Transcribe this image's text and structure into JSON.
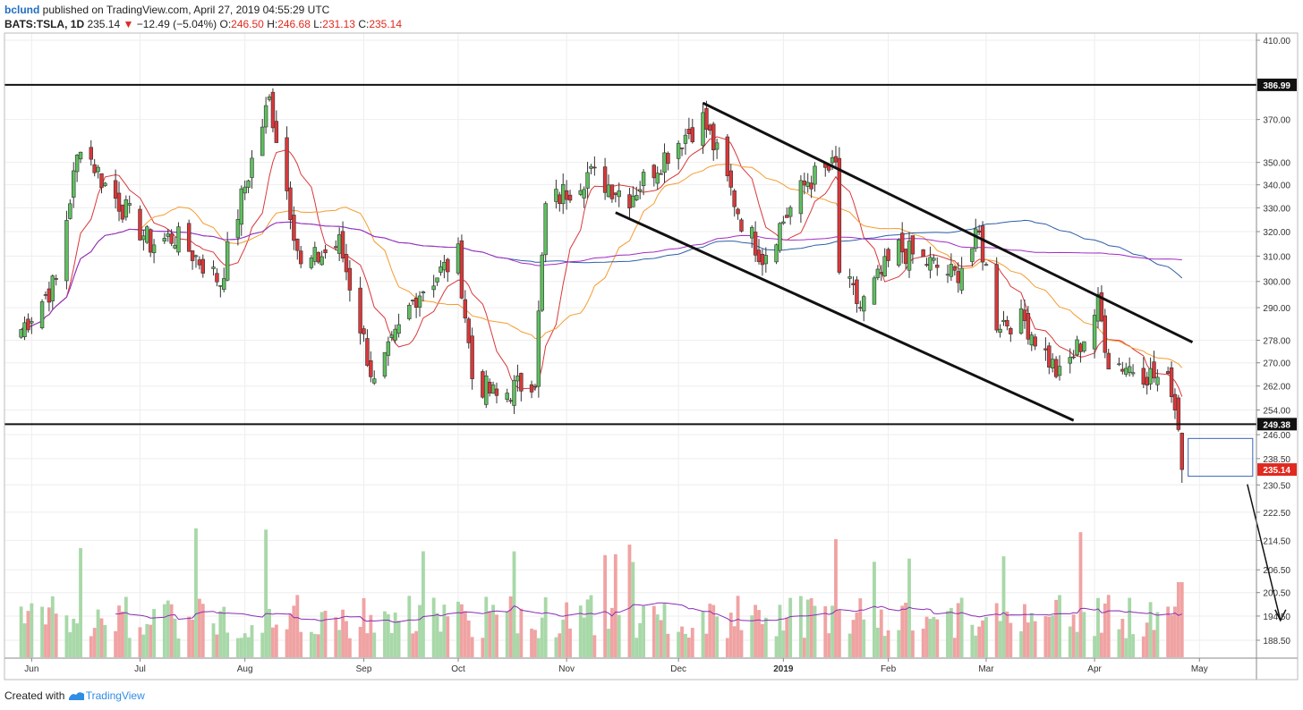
{
  "header": {
    "user": "bclund",
    "published": "published on TradingView.com, April 27, 2019 04:55:29 UTC",
    "symbol": "BATS:TSLA, 1D",
    "last": "235.14",
    "change": "−12.49 (−5.04%)",
    "o_label": "O:",
    "o": "246.50",
    "h_label": "H:",
    "h": "246.68",
    "l_label": "L:",
    "l": "231.13",
    "c_label": "C:",
    "c": "235.14"
  },
  "footer": {
    "created_with": "Created with",
    "brand": "TradingView"
  },
  "colors": {
    "up": "#5fbf5f",
    "down": "#d9383a",
    "vol_up": "#a8d8a8",
    "vol_down": "#f0a3a3",
    "ma_red": "#d9383a",
    "ma_orange": "#f49c2e",
    "ma_blue": "#2d5fa8",
    "ma_purple": "#a22cc4",
    "vol_ma": "#8a2db5",
    "price_label_bg": "#e0291f"
  },
  "chart_data": {
    "type": "candlestick",
    "symbol": "BATS:TSLA",
    "interval": "1D",
    "x_ticks": [
      "Jun",
      "Jul",
      "Aug",
      "Sep",
      "Oct",
      "Nov",
      "Dec",
      "2019",
      "Feb",
      "Mar",
      "Apr",
      "May"
    ],
    "y_ticks": [
      "410.00",
      "370.00",
      "350.00",
      "340.00",
      "330.00",
      "320.00",
      "310.00",
      "300.00",
      "290.00",
      "278.00",
      "270.00",
      "262.00",
      "254.00",
      "246.00",
      "238.50",
      "230.50",
      "222.50",
      "214.50",
      "206.50",
      "200.50",
      "194.50",
      "188.50"
    ],
    "y_tick_values": [
      410,
      370,
      350,
      340,
      330,
      320,
      310,
      300,
      290,
      278,
      270,
      262,
      254,
      246,
      238.5,
      230.5,
      222.5,
      214.5,
      206.5,
      200.5,
      194.5,
      188.5
    ],
    "y_scale": "log",
    "ylim": [
      182,
      420
    ],
    "horizontal_levels": [
      {
        "value": 386.99,
        "label": "386.99"
      },
      {
        "value": 249.38,
        "label": "249.38"
      }
    ],
    "last_price": {
      "value": 235.14,
      "label": "235.14"
    },
    "anchor_points": [
      {
        "date": "2018-05-29",
        "close": 282
      },
      {
        "date": "2018-06-08",
        "close": 300
      },
      {
        "date": "2018-06-15",
        "close": 360
      },
      {
        "date": "2018-06-22",
        "close": 340
      },
      {
        "date": "2018-07-05",
        "close": 315
      },
      {
        "date": "2018-07-12",
        "close": 318
      },
      {
        "date": "2018-07-25",
        "close": 300
      },
      {
        "date": "2018-08-02",
        "close": 345
      },
      {
        "date": "2018-08-08",
        "close": 379
      },
      {
        "date": "2018-08-17",
        "close": 305
      },
      {
        "date": "2018-08-28",
        "close": 315
      },
      {
        "date": "2018-09-07",
        "close": 262
      },
      {
        "date": "2018-09-19",
        "close": 295
      },
      {
        "date": "2018-10-01",
        "close": 310
      },
      {
        "date": "2018-10-05",
        "close": 265
      },
      {
        "date": "2018-10-12",
        "close": 258
      },
      {
        "date": "2018-10-23",
        "close": 265
      },
      {
        "date": "2018-10-26",
        "close": 330
      },
      {
        "date": "2018-11-07",
        "close": 345
      },
      {
        "date": "2018-11-19",
        "close": 335
      },
      {
        "date": "2018-12-03",
        "close": 360
      },
      {
        "date": "2018-12-10",
        "close": 370
      },
      {
        "date": "2018-12-21",
        "close": 325
      },
      {
        "date": "2018-12-27",
        "close": 310
      },
      {
        "date": "2019-01-09",
        "close": 342
      },
      {
        "date": "2019-01-17",
        "close": 348
      },
      {
        "date": "2019-01-18",
        "close": 304
      },
      {
        "date": "2019-01-24",
        "close": 290
      },
      {
        "date": "2019-02-04",
        "close": 313
      },
      {
        "date": "2019-02-20",
        "close": 302
      },
      {
        "date": "2019-02-27",
        "close": 318
      },
      {
        "date": "2019-03-04",
        "close": 285
      },
      {
        "date": "2019-03-12",
        "close": 285
      },
      {
        "date": "2019-03-22",
        "close": 265
      },
      {
        "date": "2019-03-29",
        "close": 279
      },
      {
        "date": "2019-04-02",
        "close": 291
      },
      {
        "date": "2019-04-05",
        "close": 271
      },
      {
        "date": "2019-04-15",
        "close": 267
      },
      {
        "date": "2019-04-23",
        "close": 262
      },
      {
        "date": "2019-04-25",
        "close": 247.6
      },
      {
        "date": "2019-04-26",
        "close": 235.14
      }
    ],
    "last_candle": {
      "date": "2019-04-26",
      "open": 246.5,
      "high": 246.68,
      "low": 231.13,
      "close": 235.14,
      "change": -12.49,
      "change_pct": -5.04
    },
    "moving_averages": [
      "red",
      "orange",
      "blue",
      "purple"
    ],
    "volume_ma_color": "purple",
    "grid": true,
    "annotations": [
      "descending channel (two parallel lines)",
      "rectangle box",
      "arrow pointing down"
    ]
  }
}
